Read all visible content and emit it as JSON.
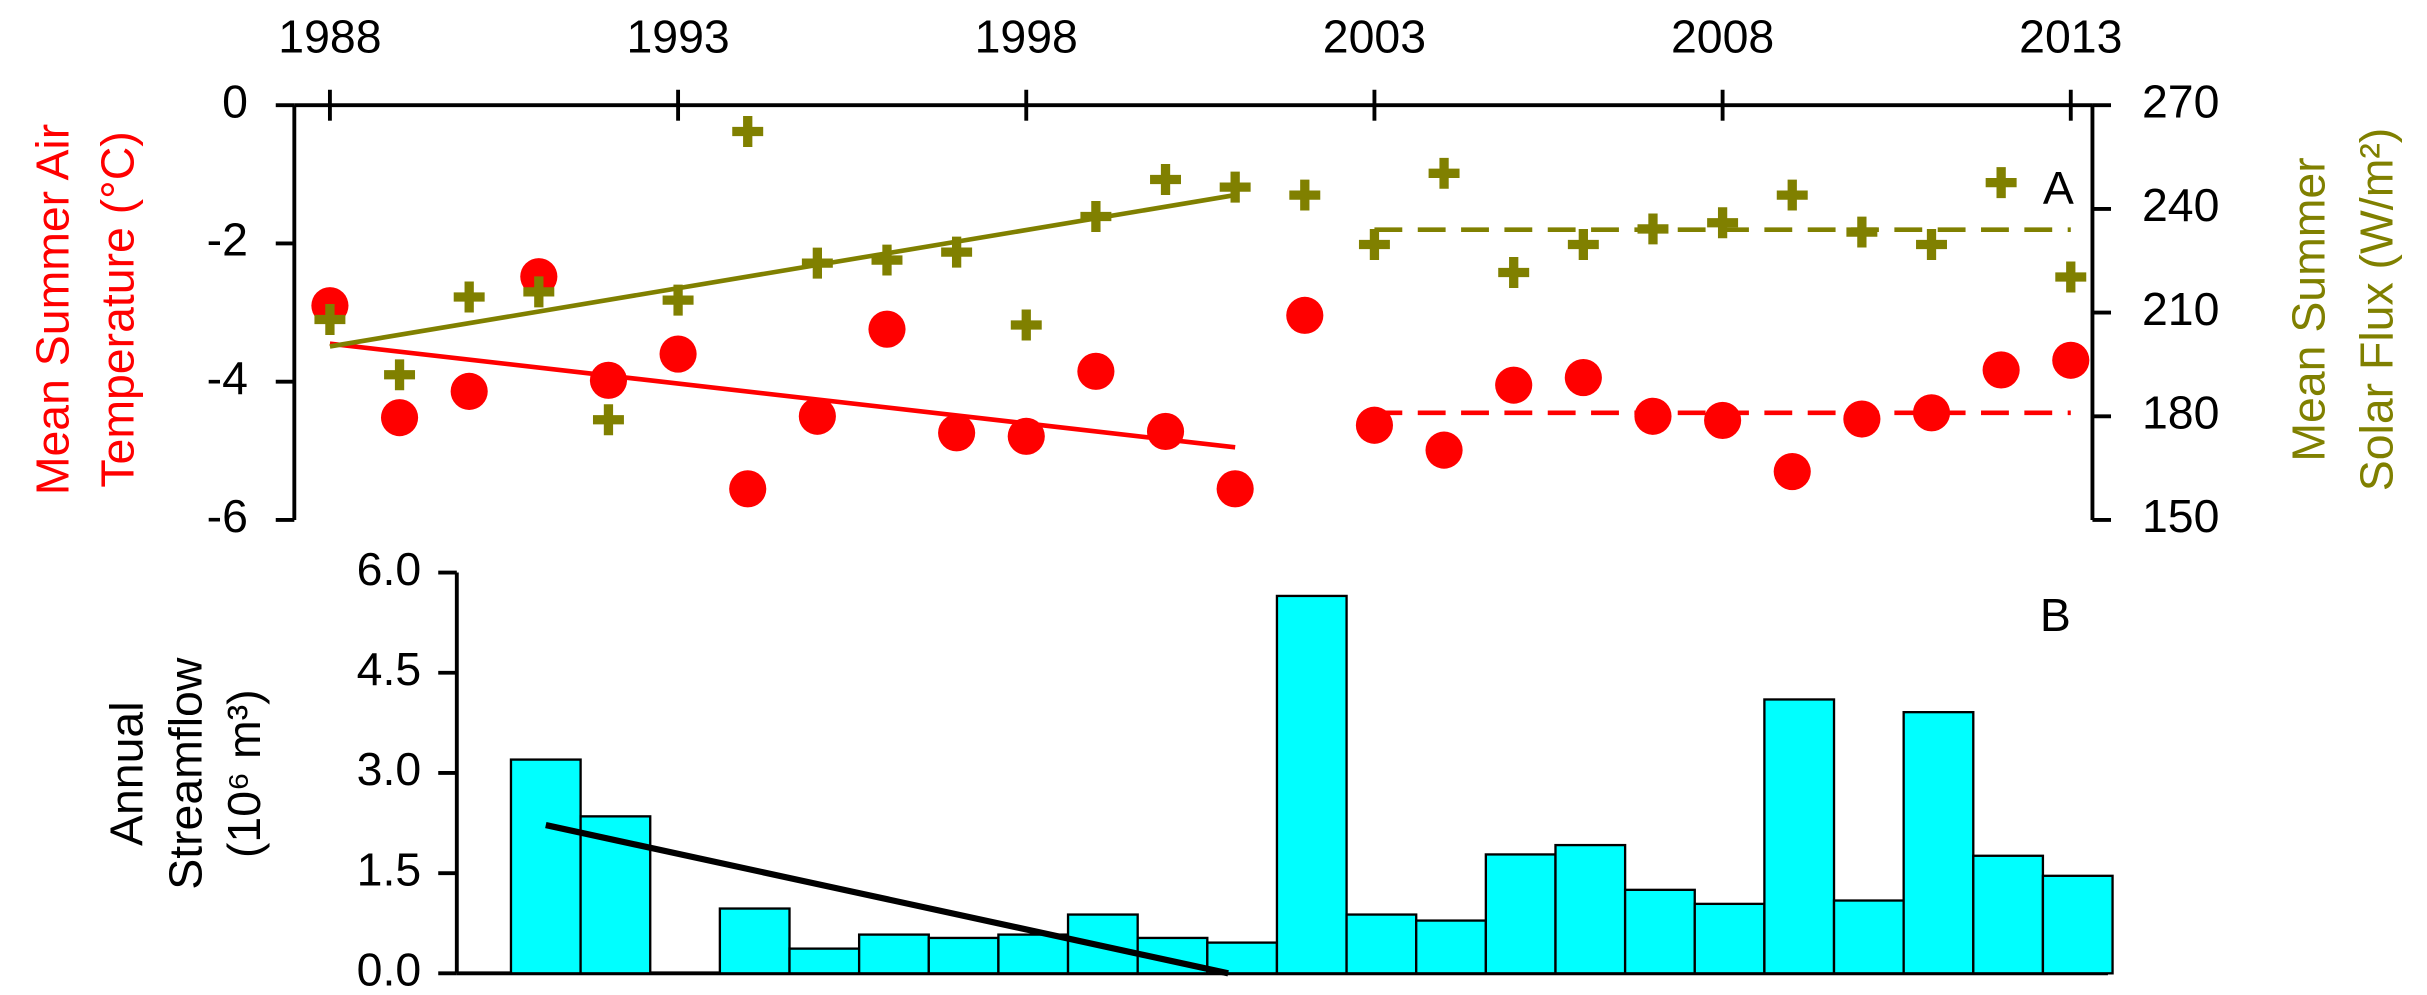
{
  "chart_data": [
    {
      "type": "scatter",
      "panel_label": "A",
      "x": [
        1988,
        1989,
        1990,
        1991,
        1992,
        1993,
        1994,
        1995,
        1996,
        1997,
        1998,
        1999,
        2000,
        2001,
        2002,
        2003,
        2004,
        2005,
        2006,
        2007,
        2008,
        2009,
        2010,
        2011,
        2012,
        2013
      ],
      "xlim": [
        1988,
        2013
      ],
      "xticks": [
        1988,
        1993,
        1998,
        2003,
        2008,
        2013
      ],
      "ylabel": [
        "Mean Summer Air",
        "Temperature (°C)"
      ],
      "ylim": [
        -6,
        0
      ],
      "yticks": [
        0,
        -2,
        -4,
        -6
      ],
      "y2label": [
        "Mean Summer",
        "Solar Flux (W/m²)"
      ],
      "y2lim": [
        150,
        270
      ],
      "y2ticks": [
        150,
        180,
        210,
        240,
        270
      ],
      "series": [
        {
          "color": "#ff0000",
          "marker": "circle",
          "values": [
            -2.9,
            -4.52,
            -4.14,
            -2.48,
            -3.98,
            -3.6,
            -5.55,
            -4.5,
            -3.24,
            -4.74,
            -4.79,
            -3.85,
            -4.72,
            -5.55,
            -3.04,
            -4.63,
            -4.99,
            -4.05,
            -3.94,
            -4.5,
            -4.56,
            -5.3,
            -4.54,
            -4.45,
            -3.83,
            -3.69
          ]
        },
        {
          "color": "#808000",
          "marker": "plus",
          "axis": "y2",
          "values": [
            208,
            192,
            214.5,
            216,
            179,
            213.6,
            262.4,
            224.3,
            225.2,
            227.5,
            206.4,
            237.8,
            248.5,
            246.3,
            244,
            229.7,
            250.3,
            221.6,
            229.7,
            234.2,
            236,
            244,
            233.3,
            229.7,
            247.6,
            220.3
          ]
        }
      ],
      "trends": [
        {
          "color": "#ff0000",
          "dashed": false,
          "x": [
            1988,
            2001
          ],
          "values": [
            -3.45,
            -4.95
          ]
        },
        {
          "color": "#ff0000",
          "dashed": true,
          "x": [
            2003,
            2013
          ],
          "values": [
            -4.45,
            -4.45
          ]
        },
        {
          "color": "#808000",
          "dashed": false,
          "axis": "y2",
          "x": [
            1988,
            2001
          ],
          "values": [
            200.2,
            244
          ]
        },
        {
          "color": "#808000",
          "dashed": true,
          "axis": "y2",
          "x": [
            2003,
            2013
          ],
          "values": [
            234,
            234
          ]
        }
      ]
    },
    {
      "type": "bar",
      "panel_label": "B",
      "ylabel": [
        "Annual",
        "Streamflow",
        "(10⁶ m³)"
      ],
      "values": [
        3.2,
        2.35,
        null,
        0.97,
        0.37,
        0.58,
        0.53,
        0.58,
        0.88,
        0.53,
        0.46,
        5.65,
        0.88,
        0.79,
        1.78,
        1.92,
        1.25,
        1.04,
        4.1,
        1.09,
        3.91,
        1.76,
        1.46
      ],
      "color": "#00ffff",
      "ylim": [
        0,
        6
      ],
      "yticks": [
        {
          "value": 0,
          "label": "0.0"
        },
        1.5,
        {
          "value": 3,
          "label": "3.0"
        },
        4.5,
        {
          "value": 6,
          "label": "6.0"
        }
      ],
      "trend": {
        "color": "#000000",
        "x": [
          0,
          9.8
        ],
        "values": [
          2.22,
          0
        ]
      }
    }
  ]
}
